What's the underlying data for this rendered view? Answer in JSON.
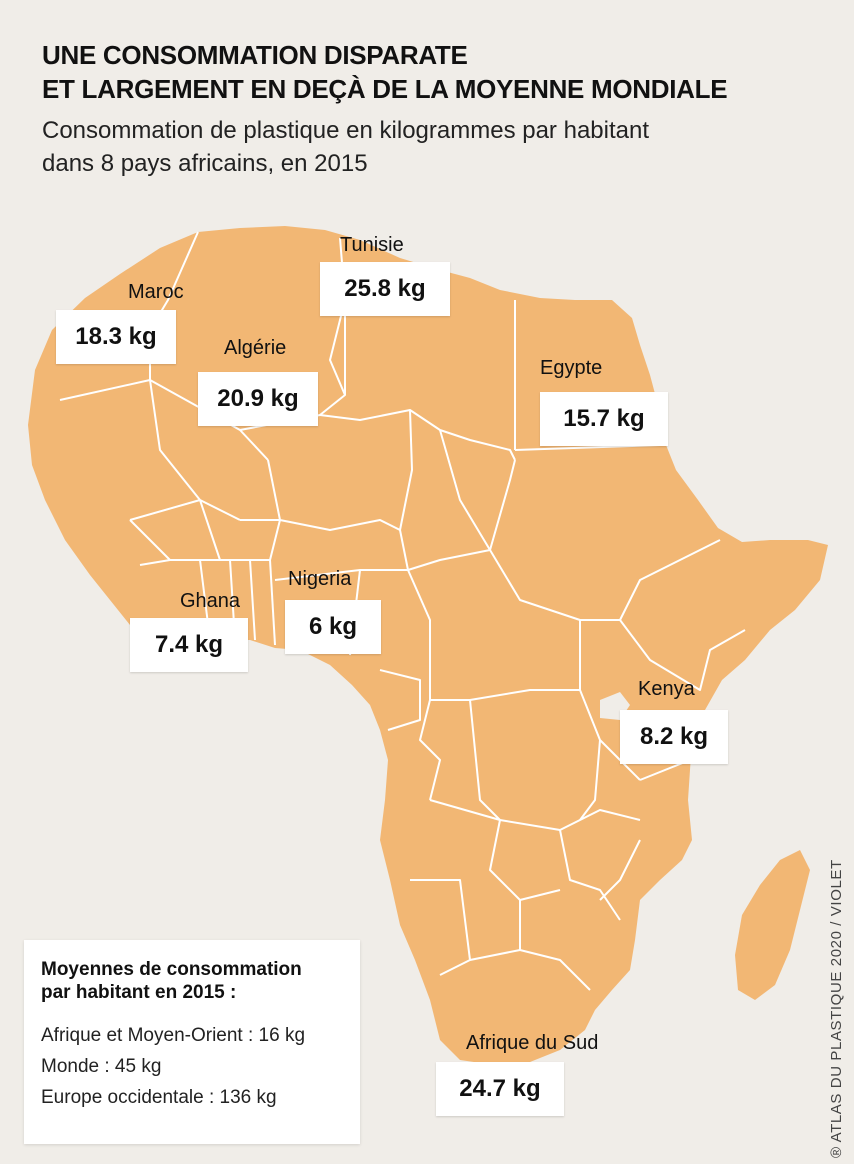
{
  "title": {
    "line1": "UNE CONSOMMATION DISPARATE",
    "line2": "ET LARGEMENT EN DEÇÀ DE LA MOYENNE MONDIALE"
  },
  "subtitle": {
    "line1": "Consommation de plastique en kilogrammes par habitant",
    "line2": "dans 8 pays africains, en 2015"
  },
  "colors": {
    "background": "#f0ede8",
    "land": "#f2b774",
    "borders": "#ffffff",
    "label_box": "#ffffff"
  },
  "countries": [
    {
      "name": "Maroc",
      "value": "18.3 kg"
    },
    {
      "name": "Algérie",
      "value": "20.9 kg"
    },
    {
      "name": "Tunisie",
      "value": "25.8 kg"
    },
    {
      "name": "Egypte",
      "value": "15.7 kg"
    },
    {
      "name": "Ghana",
      "value": "7.4 kg"
    },
    {
      "name": "Nigeria",
      "value": "6 kg"
    },
    {
      "name": "Kenya",
      "value": "8.2 kg"
    },
    {
      "name": "Afrique du Sud",
      "value": "24.7 kg"
    }
  ],
  "legend": {
    "title_line1": "Moyennes de consommation",
    "title_line2": "par habitant en 2015 :",
    "items": [
      "Afrique et Moyen-Orient : 16 kg",
      "Monde : 45 kg",
      "Europe occidentale : 136 kg"
    ]
  },
  "credit": "® ATLAS DU PLASTIQUE 2020 / VIOLET"
}
